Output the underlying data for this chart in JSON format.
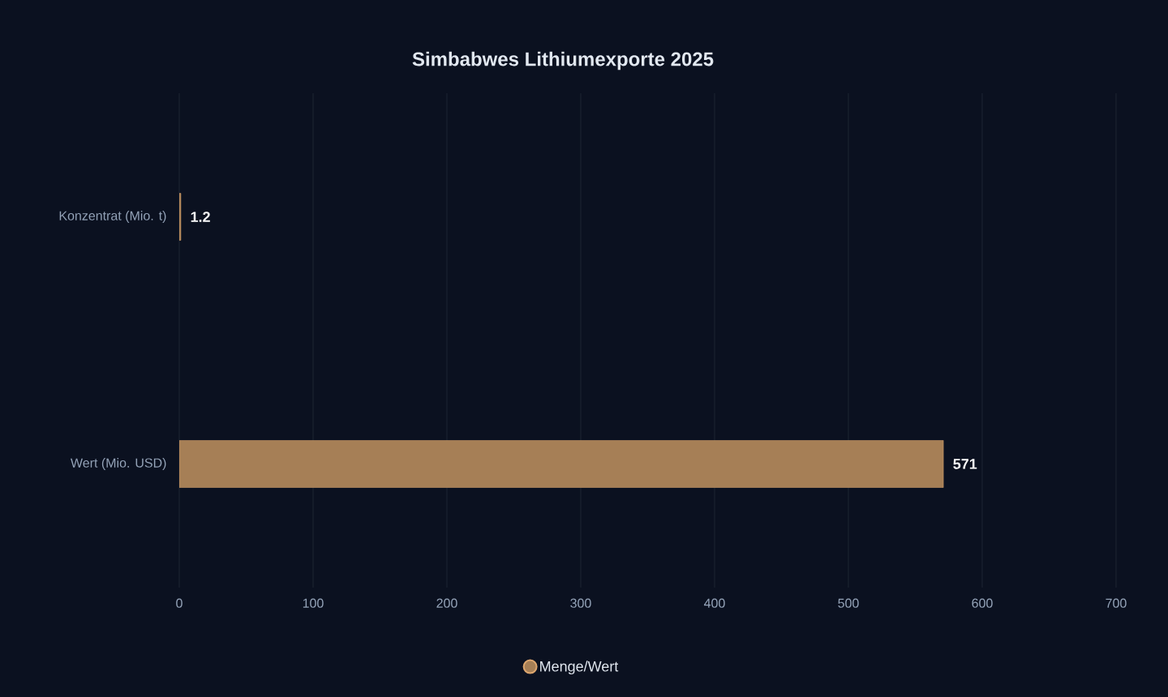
{
  "chart_data": {
    "type": "bar",
    "orientation": "horizontal",
    "title": "Simbabwes Lithiumexporte 2025",
    "categories": [
      "Konzentrat (Mio. t)",
      "Wert (Mio. USD)"
    ],
    "series": [
      {
        "name": "Menge/Wert",
        "color": "#a67f56",
        "values": [
          1.2,
          571
        ]
      }
    ],
    "xlim": [
      0,
      700
    ],
    "xticks": [
      0,
      100,
      200,
      300,
      400,
      500,
      600,
      700
    ],
    "grid": "x",
    "legend": "bottom",
    "data_labels": true
  }
}
